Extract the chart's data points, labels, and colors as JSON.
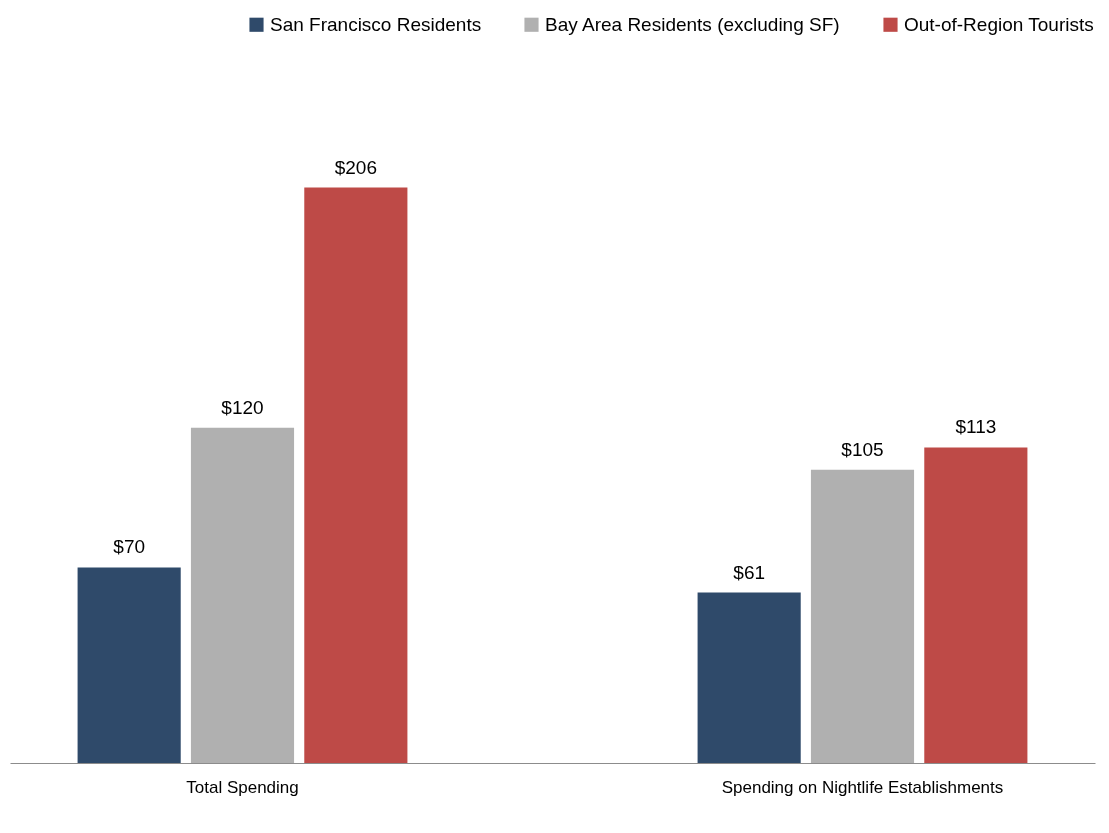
{
  "chart_data": {
    "type": "bar",
    "categories": [
      "Total Spending",
      "Spending on Nightlife Establishments"
    ],
    "series": [
      {
        "name": "San Francisco Residents",
        "color": "#2f4a6a",
        "values": [
          70,
          61
        ],
        "value_labels": [
          "$70",
          "$61"
        ]
      },
      {
        "name": "Bay Area Residents (excluding SF)",
        "color": "#b0b0b0",
        "values": [
          120,
          105
        ],
        "value_labels": [
          "$120",
          "$105"
        ]
      },
      {
        "name": "Out-of-Region Tourists",
        "color": "#be4a47",
        "values": [
          206,
          113
        ],
        "value_labels": [
          "$206",
          "$113"
        ]
      }
    ],
    "legend": "top right",
    "grid": false
  }
}
